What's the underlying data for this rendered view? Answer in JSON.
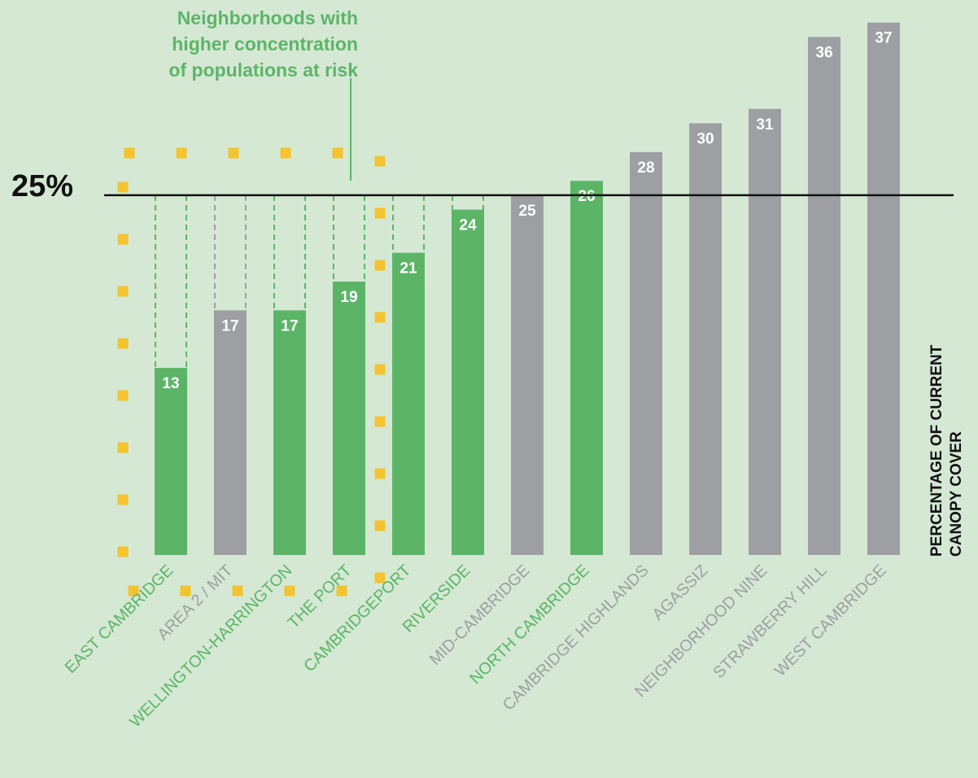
{
  "chart_data": {
    "type": "bar",
    "title": "",
    "xlabel": "",
    "ylabel": "PERCENTAGE OF CURRENT\nCANOPY COVER",
    "categories": [
      "EAST CAMBRIDGE",
      "AREA 2 / MIT",
      "WELLINGTON-HARRINGTON",
      "THE PORT",
      "CAMBRIDGEPORT",
      "RIVERSIDE",
      "MID-CAMBRIDGE",
      "NORTH CAMBRIDGE",
      "CAMBRIDGE HIGHLANDS",
      "AGASSIZ",
      "NEIGHBORHOOD NINE",
      "STRAWBERRY HILL",
      "WEST CAMBRIDGE"
    ],
    "values": [
      13,
      17,
      17,
      19,
      21,
      24,
      25,
      26,
      28,
      30,
      31,
      36,
      37
    ],
    "at_risk": [
      true,
      false,
      true,
      true,
      true,
      true,
      false,
      true,
      false,
      false,
      false,
      false,
      false
    ],
    "ylim": [
      0,
      38
    ],
    "reference_line": {
      "value": 25,
      "label": "25%"
    },
    "annotation": "Neighborhoods with\nhigher concentration\nof populations at risk",
    "grid": false,
    "colors": {
      "at_risk": "#5cb567",
      "other": "#9d9fa2",
      "highlight": "#f4c32f",
      "reference": "#111111",
      "background": "#d5e8d4"
    }
  }
}
